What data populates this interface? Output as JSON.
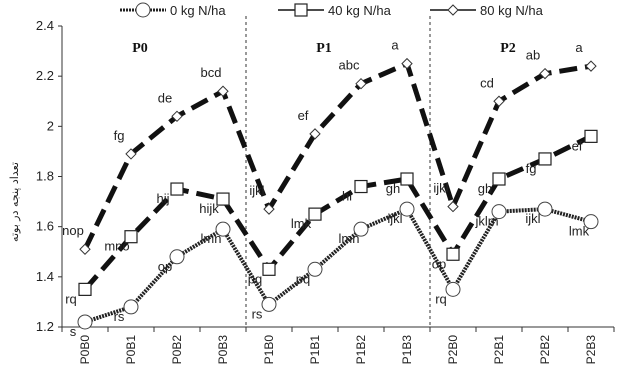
{
  "chart_data": {
    "type": "line",
    "ylabel": "تعداد پنجه در بوته",
    "ylim": [
      1.2,
      2.4
    ],
    "yticks": [
      "1.2",
      "1.4",
      "1.6",
      "1.8",
      "2",
      "2.2",
      "2.4"
    ],
    "categories": [
      "P0B0",
      "P0B1",
      "P0B2",
      "P0B3",
      "P1B0",
      "P1B1",
      "P1B2",
      "P1B3",
      "P2B0",
      "P2B1",
      "P2B2",
      "P2B3"
    ],
    "group_labels": [
      "P0",
      "P1",
      "P2"
    ],
    "legend_position": "top",
    "series": [
      {
        "name": "0 kg N/ha",
        "marker": "circle",
        "line_style": "dotted-thick",
        "values": [
          1.22,
          1.28,
          1.48,
          1.59,
          1.29,
          1.43,
          1.59,
          1.67,
          1.35,
          1.66,
          1.67,
          1.62
        ],
        "letters": [
          "s",
          "rs",
          "op",
          "lmn",
          "rs",
          "pq",
          "lmn",
          "ijkl",
          "rq",
          "jklm",
          "ijkl",
          "lmk"
        ]
      },
      {
        "name": "40 kg N/ha",
        "marker": "square",
        "line_style": "dashed-thick",
        "values": [
          1.35,
          1.56,
          1.75,
          1.71,
          1.43,
          1.65,
          1.76,
          1.79,
          1.49,
          1.79,
          1.87,
          1.96
        ],
        "letters": [
          "rq",
          "mno",
          "hij",
          "hijk",
          "pq",
          "lmk",
          "hi",
          "gh",
          "op",
          "gh",
          "fg",
          "ef"
        ]
      },
      {
        "name": "80 kg N/ha",
        "marker": "diamond",
        "line_style": "dashed-thick",
        "values": [
          1.51,
          1.89,
          2.04,
          2.14,
          1.67,
          1.97,
          2.17,
          2.25,
          1.68,
          2.1,
          2.21,
          2.24
        ],
        "letters": [
          "nop",
          "fg",
          "de",
          "bcd",
          "ijkl",
          "ef",
          "abc",
          "a",
          "ijkl",
          "cd",
          "ab",
          "a"
        ]
      }
    ]
  }
}
